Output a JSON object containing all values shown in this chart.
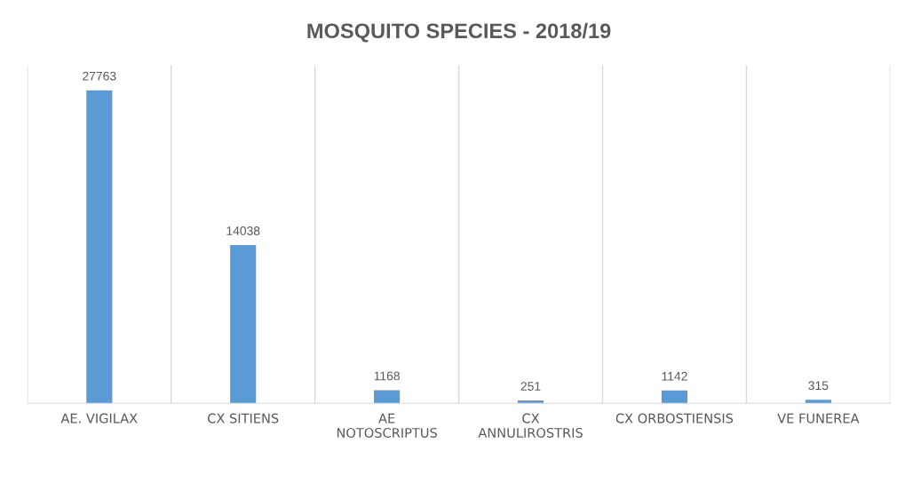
{
  "chart_data": {
    "type": "bar",
    "title": "MOSQUITO SPECIES - 2018/19",
    "categories": [
      "AE. VIGILAX",
      "CX SITIENS",
      "AE\nNOTOSCRIPTUS",
      "CX\nANNULIROSTRIS",
      "CX ORBOSTIENSIS",
      "VE FUNEREA"
    ],
    "values": [
      27763,
      14038,
      1168,
      251,
      1142,
      315
    ],
    "color": "#5b9bd5",
    "data_labels": true,
    "grid": "x",
    "legend": false
  }
}
